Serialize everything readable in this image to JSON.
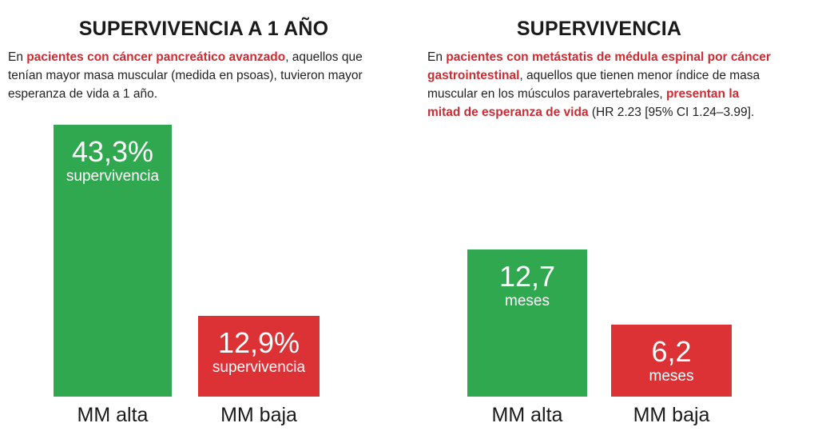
{
  "left_panel": {
    "title": "SUPERVIVENCIA A 1 AÑO",
    "description": [
      {
        "text": "En ",
        "highlight": false
      },
      {
        "text": "pacientes con cáncer pancreático avanzado",
        "highlight": true
      },
      {
        "text": ", aquellos que tenían mayor masa muscular (medida en psoas), tuvieron mayor esperanza de vida a 1 año.",
        "highlight": false
      }
    ]
  },
  "right_panel": {
    "title": "SUPERVIVENCIA",
    "description": [
      {
        "text": "En ",
        "highlight": false
      },
      {
        "text": "pacientes con metástatis de médula espinal por cáncer gastrointestinal",
        "highlight": true
      },
      {
        "text": ", aquellos que tienen menor índice de masa muscular en los músculos paravertebrales, ",
        "highlight": false
      },
      {
        "text": "presentan la mitad de esperanza de vida",
        "highlight": true
      },
      {
        "text": " (HR 2.23 [95% CI 1.24–3.99].",
        "highlight": false
      }
    ]
  },
  "colors": {
    "high": "#2fa84f",
    "low": "#dc3235",
    "highlight_text": "#cf2b32"
  },
  "chart_data": [
    {
      "type": "bar",
      "title": "SUPERVIVENCIA A 1 AÑO",
      "categories": [
        "MM alta",
        "MM baja"
      ],
      "values": [
        43.3,
        12.9
      ],
      "value_labels": [
        "43,3%",
        "12,9%"
      ],
      "unit_label": "supervivencia",
      "ylim": [
        0,
        43.3
      ],
      "grid": false
    },
    {
      "type": "bar",
      "title": "SUPERVIVENCIA",
      "categories": [
        "MM alta",
        "MM baja"
      ],
      "values": [
        12.7,
        6.2
      ],
      "value_labels": [
        "12,7",
        "6,2"
      ],
      "unit_label": "meses",
      "ylim": [
        0,
        23.5
      ],
      "grid": false
    }
  ]
}
